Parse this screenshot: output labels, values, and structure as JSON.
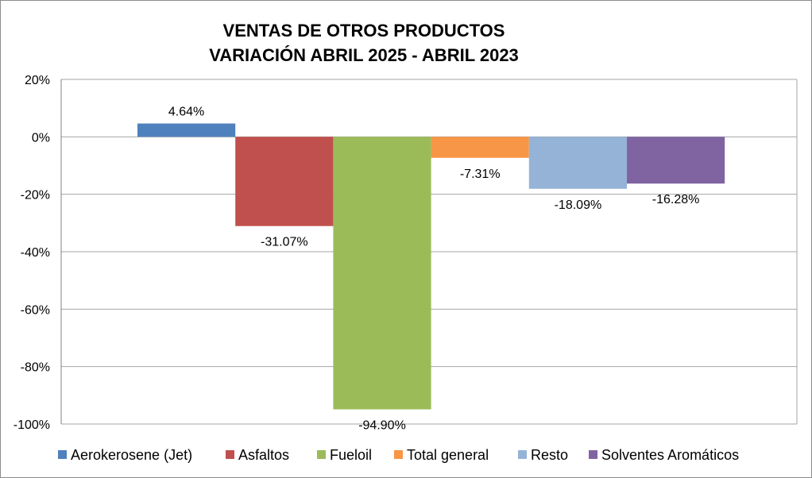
{
  "chart_data": {
    "type": "bar",
    "title_lines": [
      "VENTAS DE OTROS PRODUCTOS",
      "VARIACIÓN ABRIL 2025 - ABRIL 2023"
    ],
    "categories": [
      "Aerokerosene (Jet)",
      "Asfaltos",
      "Fueloil",
      "Total general",
      "Resto",
      "Solventes Aromáticos"
    ],
    "values": [
      4.64,
      -31.07,
      -94.9,
      -7.31,
      -18.09,
      -16.28
    ],
    "data_labels": [
      "4.64%",
      "-31.07%",
      "-94.90%",
      "-7.31%",
      "-18.09%",
      "-16.28%"
    ],
    "colors": [
      "#4F81BD",
      "#C0504D",
      "#9BBB59",
      "#F79646",
      "#95B3D7",
      "#8064A2"
    ],
    "ylim": [
      -100,
      20
    ],
    "ytick_values": [
      20,
      0,
      -20,
      -40,
      -60,
      -80,
      -100
    ],
    "ytick_labels": [
      "20%",
      "0%",
      "-20%",
      "-40%",
      "-60%",
      "-80%",
      "-100%"
    ],
    "gridlines": true,
    "legend_position": "bottom",
    "xlabel": "",
    "ylabel": ""
  }
}
